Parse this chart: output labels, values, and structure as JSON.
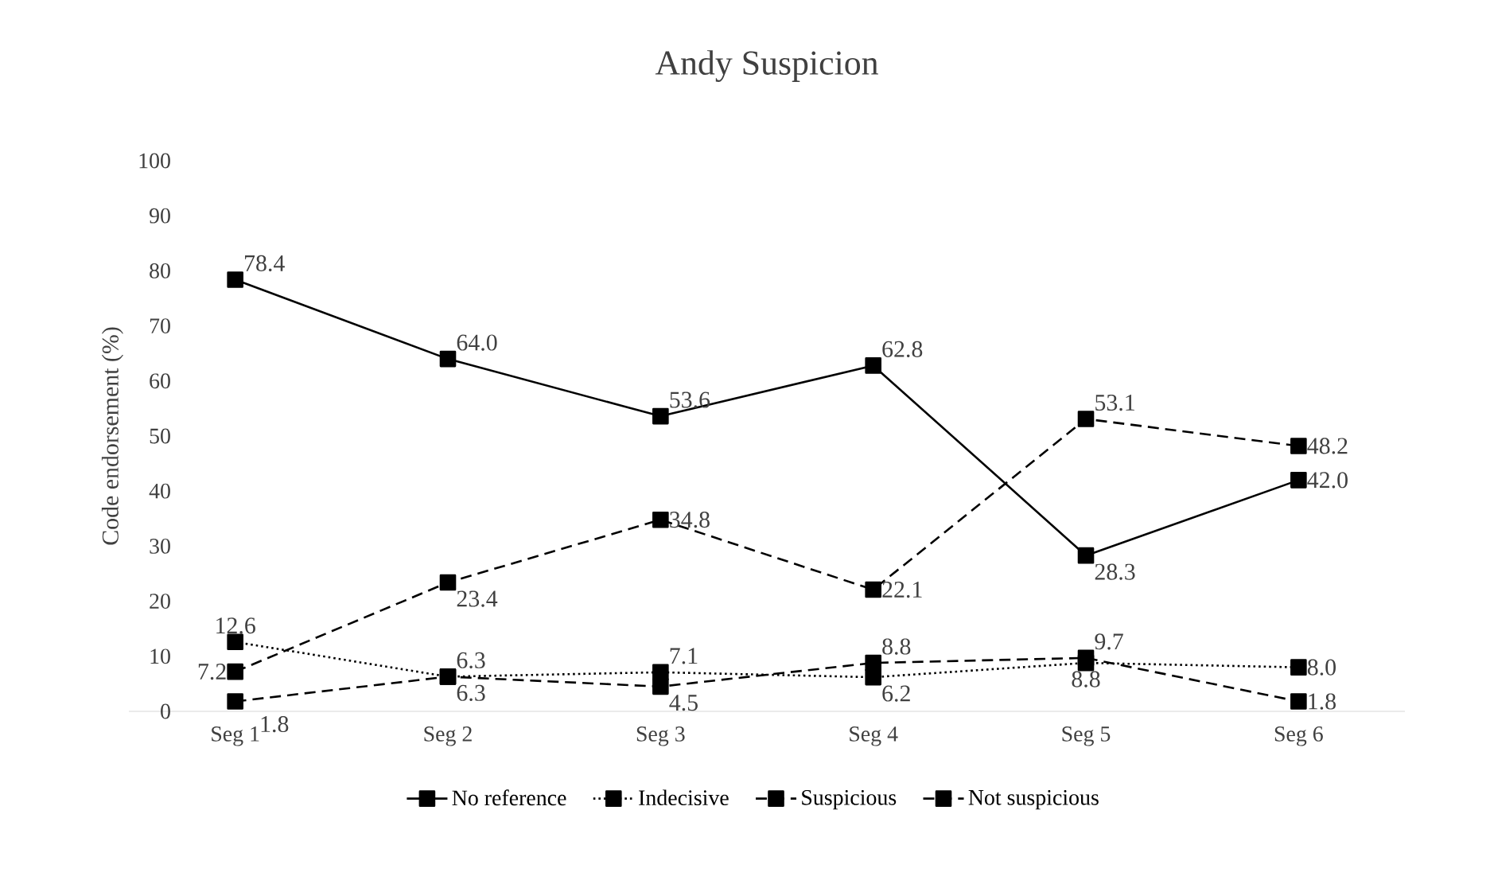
{
  "chart_data": {
    "type": "line",
    "title": "Andy Suspicion",
    "ylabel": "Code endorsement (%)",
    "categories": [
      "Seg 1",
      "Seg 2",
      "Seg 3",
      "Seg 4",
      "Seg 5",
      "Seg 6"
    ],
    "series": [
      {
        "name": "No reference",
        "color": "#000000",
        "line_style": "solid",
        "values": [
          78.4,
          64.0,
          53.6,
          62.8,
          28.3,
          42.0
        ],
        "value_labels": [
          "78.4",
          "64.0",
          "53.6",
          "62.8",
          "28.3",
          "42.0"
        ]
      },
      {
        "name": "Indecisive",
        "color": "#000000",
        "line_style": "dotted",
        "values": [
          12.6,
          6.3,
          7.1,
          6.2,
          8.8,
          8.0
        ],
        "value_labels": [
          "12.6",
          "6.3",
          "7.1",
          "6.2",
          "8.8",
          "8.0"
        ]
      },
      {
        "name": "Suspicious",
        "color": "#000000",
        "line_style": "dashed",
        "values": [
          7.2,
          23.4,
          34.8,
          22.1,
          53.1,
          48.2
        ],
        "value_labels": [
          "7.2",
          "23.4",
          "34.8",
          "22.1",
          "53.1",
          "48.2"
        ]
      },
      {
        "name": "Not suspicious",
        "color": "#000000",
        "line_style": "dashed",
        "values": [
          1.8,
          6.3,
          4.5,
          8.8,
          9.7,
          1.8
        ],
        "value_labels": [
          "1.8",
          "6.3",
          "4.5",
          "8.8",
          "9.7",
          "1.8"
        ]
      }
    ],
    "ylim": [
      0,
      100
    ],
    "yticks": [
      0,
      10,
      20,
      30,
      40,
      50,
      60,
      70,
      80,
      90,
      100
    ],
    "grid": false,
    "legend": "bottom",
    "marker": "square"
  }
}
